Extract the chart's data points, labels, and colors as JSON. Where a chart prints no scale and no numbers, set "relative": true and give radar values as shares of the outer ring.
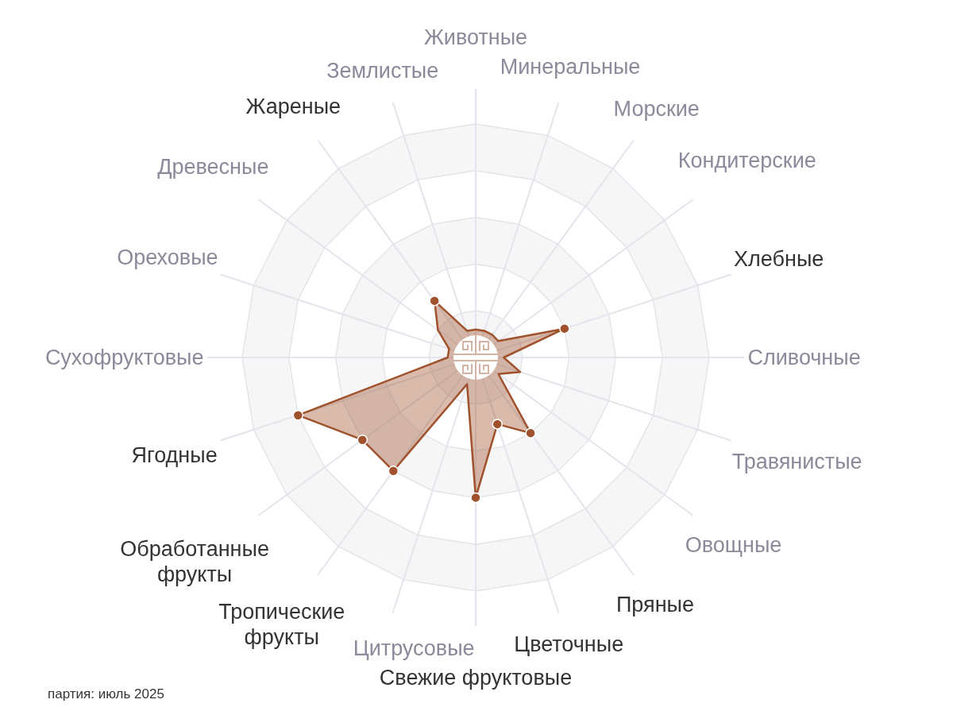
{
  "chart_data": {
    "type": "radar",
    "categories": [
      "Животные",
      "Минеральные",
      "Морские",
      "Кондитерские",
      "Хлебные",
      "Сливочные",
      "Травянистые",
      "Овощные",
      "Пряные",
      "Цветочные",
      "Свежие фруктовые",
      "Цитрусовые",
      "Тропические фрукты",
      "Обработанные фрукты",
      "Ягодные",
      "Сухофруктовые",
      "Ореховые",
      "Древесные",
      "Жареные",
      "Землистые"
    ],
    "relative": true,
    "grid": true,
    "series": [
      {
        "color": "#a0522d",
        "marker": "circle",
        "colors": [
          null,
          null,
          null,
          null,
          "#a0522d",
          null,
          null,
          null,
          "#a0522d",
          "#a0522d",
          "#a0522d",
          null,
          "#a0522d",
          "#a0522d",
          "#a0522d",
          null,
          null,
          null,
          "#a0522d",
          null
        ],
        "values": [
          0.12,
          0.12,
          0.12,
          0.12,
          0.4,
          0.12,
          0.2,
          0.12,
          0.4,
          0.3,
          0.6,
          0.12,
          0.6,
          0.6,
          0.8,
          0.12,
          0.12,
          0.2,
          0.3,
          0.12
        ]
      }
    ],
    "annotations": [
      "партия: июль 2025"
    ]
  }
}
